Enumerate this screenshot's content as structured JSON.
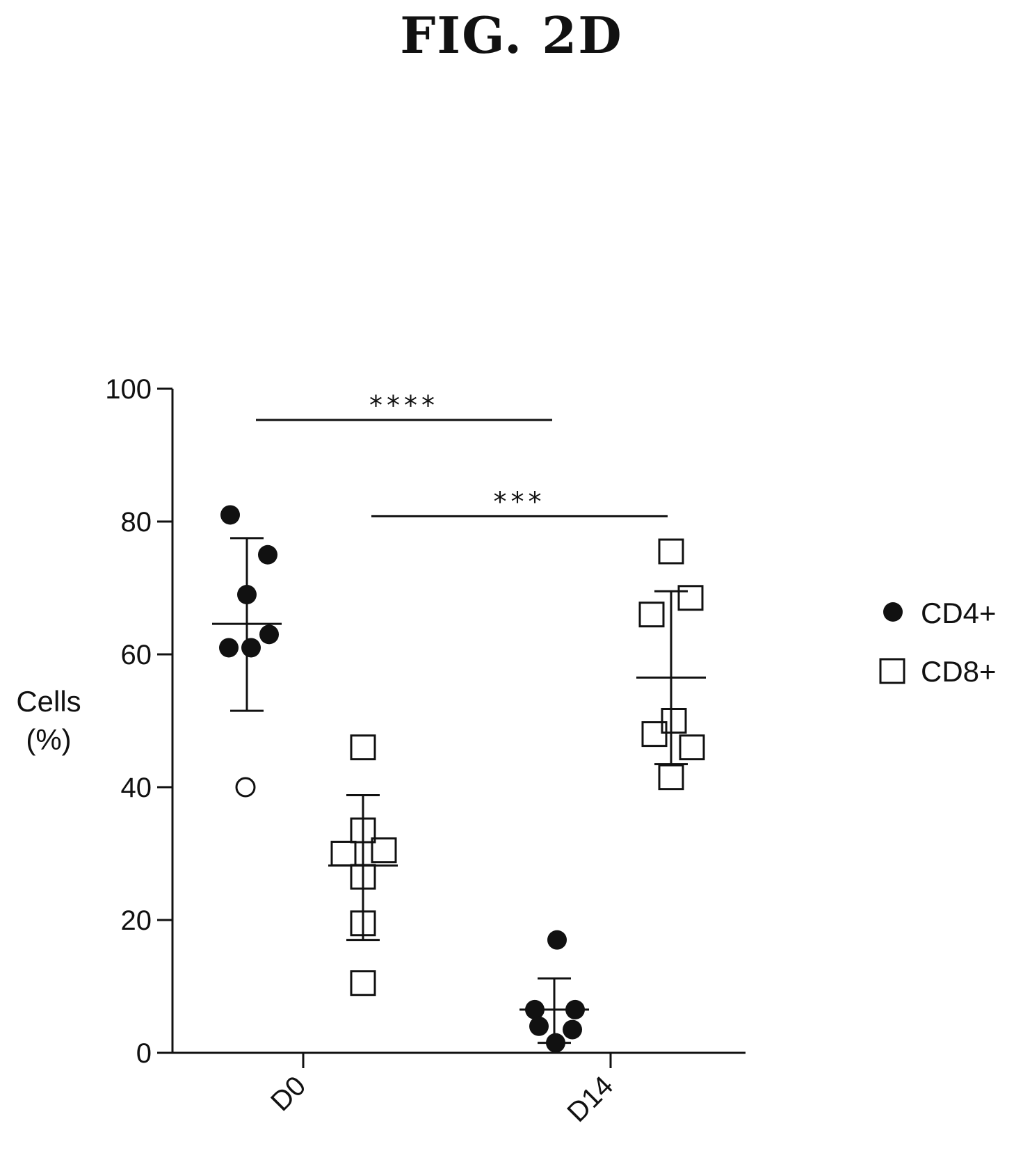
{
  "figure": {
    "title": "FIG. 2D"
  },
  "chart_data": {
    "type": "scatter",
    "ylabel_line1": "Cells",
    "ylabel_line2": "(%)",
    "ylim": [
      0,
      100
    ],
    "yticks": [
      0,
      20,
      40,
      60,
      80,
      100
    ],
    "categories": [
      "D0",
      "D14"
    ],
    "legend_position": "right",
    "series": [
      {
        "name": "CD4+",
        "marker": "filled-circle",
        "groups": [
          {
            "category": "D0",
            "points": [
              81,
              75,
              69,
              63,
              61,
              61
            ],
            "open_points": [
              40
            ],
            "mean": 64.6,
            "sd_low": 51.5,
            "sd_high": 77.5
          },
          {
            "category": "D14",
            "points": [
              17,
              6.5,
              6.5,
              4,
              3.5,
              1.5
            ],
            "open_points": [],
            "mean": 6.5,
            "sd_low": 1.5,
            "sd_high": 11.2
          }
        ]
      },
      {
        "name": "CD8+",
        "marker": "open-square",
        "groups": [
          {
            "category": "D0",
            "points": [
              46,
              33.5,
              30.5,
              30,
              26.5,
              19.5,
              10.5
            ],
            "open_points": [],
            "mean": 28.2,
            "sd_low": 17,
            "sd_high": 38.8
          },
          {
            "category": "D14",
            "points": [
              75.5,
              68.5,
              66,
              50,
              48,
              46,
              41.5
            ],
            "open_points": [],
            "mean": 56.5,
            "sd_low": 43.5,
            "sd_high": 69.5
          }
        ]
      }
    ],
    "significance": [
      {
        "label": "****",
        "y": 95.3
      },
      {
        "label": "***",
        "y": 80.8
      }
    ]
  }
}
